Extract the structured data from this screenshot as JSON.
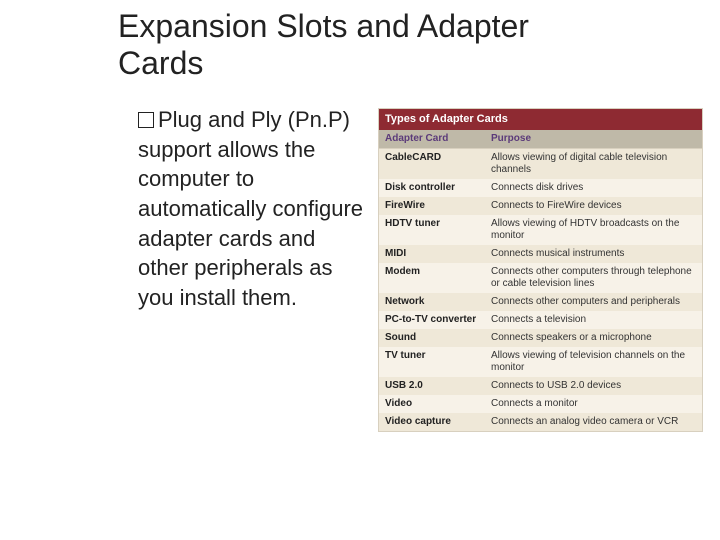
{
  "title": "Expansion Slots and Adapter Cards",
  "body": {
    "firstLine": "Plug and Ply",
    "rest": "(Pn.P) support allows the computer to automatically configure adapter cards and other peripherals as you install them."
  },
  "panel": {
    "header": "Types of Adapter Cards",
    "col1": "Adapter Card",
    "col2": "Purpose",
    "header_bg": "#8e2a32",
    "header_fg": "#ffffff",
    "th_bg": "#bfb9a8",
    "th_fg": "#5b3a7a",
    "row_odd_bg": "#efe8d8",
    "row_even_bg": "#f7f2e8",
    "rows": [
      {
        "name": "CableCARD",
        "purpose": "Allows viewing of digital cable television channels"
      },
      {
        "name": "Disk controller",
        "purpose": "Connects disk drives"
      },
      {
        "name": "FireWire",
        "purpose": "Connects to FireWire devices"
      },
      {
        "name": "HDTV tuner",
        "purpose": "Allows viewing of HDTV broadcasts on the monitor"
      },
      {
        "name": "MIDI",
        "purpose": "Connects musical instruments"
      },
      {
        "name": "Modem",
        "purpose": "Connects other computers through telephone or cable television lines"
      },
      {
        "name": "Network",
        "purpose": "Connects other computers and peripherals"
      },
      {
        "name": "PC-to-TV converter",
        "purpose": "Connects a television"
      },
      {
        "name": "Sound",
        "purpose": "Connects speakers or a microphone"
      },
      {
        "name": "TV tuner",
        "purpose": "Allows viewing of television channels on the monitor"
      },
      {
        "name": "USB 2.0",
        "purpose": "Connects to USB 2.0 devices"
      },
      {
        "name": "Video",
        "purpose": "Connects a monitor"
      },
      {
        "name": "Video capture",
        "purpose": "Connects an analog video camera or VCR"
      }
    ]
  }
}
